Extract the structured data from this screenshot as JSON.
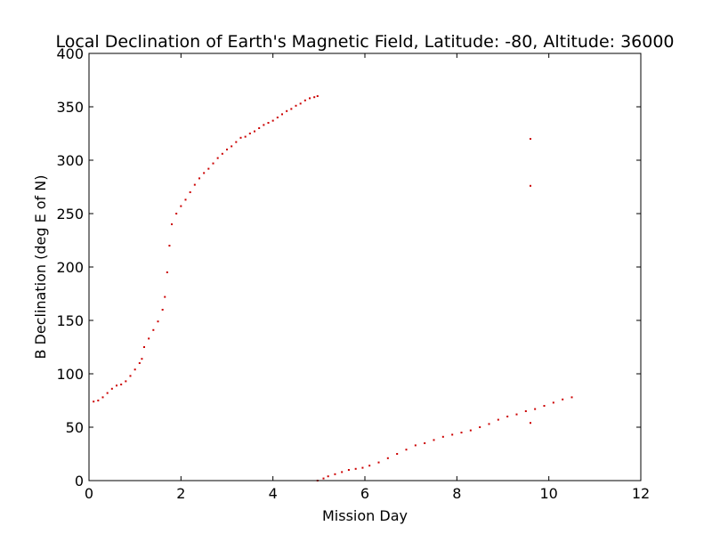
{
  "chart_data": {
    "type": "scatter",
    "title": "Local Declination of Earth's Magnetic Field, Latitude: -80, Altitude: 36000",
    "xlabel": "Mission Day",
    "ylabel": "B Declination (deg E of N)",
    "xlim": [
      0,
      12
    ],
    "ylim": [
      0,
      400
    ],
    "xticks": [
      "0",
      "2",
      "4",
      "6",
      "8",
      "10",
      "12"
    ],
    "yticks": [
      "0",
      "50",
      "100",
      "150",
      "200",
      "250",
      "300",
      "350",
      "400"
    ],
    "grid": false,
    "legend": "none",
    "series": [
      {
        "color": "#cc0000",
        "points": [
          [
            0.1,
            74
          ],
          [
            0.2,
            75
          ],
          [
            0.3,
            78
          ],
          [
            0.4,
            82
          ],
          [
            0.5,
            86
          ],
          [
            0.6,
            89
          ],
          [
            0.7,
            90
          ],
          [
            0.8,
            93
          ],
          [
            0.9,
            98
          ],
          [
            1.0,
            104
          ],
          [
            1.1,
            110
          ],
          [
            1.15,
            114
          ],
          [
            1.2,
            125
          ],
          [
            1.3,
            133
          ],
          [
            1.4,
            141
          ],
          [
            1.5,
            149
          ],
          [
            1.6,
            160
          ],
          [
            1.65,
            172
          ],
          [
            1.7,
            195
          ],
          [
            1.75,
            220
          ],
          [
            1.8,
            240
          ],
          [
            1.9,
            250
          ],
          [
            2.0,
            257
          ],
          [
            2.1,
            263
          ],
          [
            2.2,
            270
          ],
          [
            2.3,
            277
          ],
          [
            2.4,
            283
          ],
          [
            2.5,
            288
          ],
          [
            2.6,
            292
          ],
          [
            2.7,
            297
          ],
          [
            2.8,
            302
          ],
          [
            2.9,
            306
          ],
          [
            3.0,
            310
          ],
          [
            3.1,
            313
          ],
          [
            3.2,
            317
          ],
          [
            3.3,
            321
          ],
          [
            3.4,
            322
          ],
          [
            3.5,
            325
          ],
          [
            3.6,
            327
          ],
          [
            3.7,
            330
          ],
          [
            3.8,
            333
          ],
          [
            3.9,
            335
          ],
          [
            4.0,
            337
          ],
          [
            4.1,
            340
          ],
          [
            4.2,
            343
          ],
          [
            4.3,
            346
          ],
          [
            4.4,
            348
          ],
          [
            4.5,
            351
          ],
          [
            4.6,
            353
          ],
          [
            4.7,
            356
          ],
          [
            4.8,
            358
          ],
          [
            4.9,
            359
          ],
          [
            4.97,
            360
          ],
          [
            4.97,
            0
          ],
          [
            5.1,
            2
          ],
          [
            5.2,
            4
          ],
          [
            5.35,
            6
          ],
          [
            5.5,
            8
          ],
          [
            5.65,
            10
          ],
          [
            5.8,
            11
          ],
          [
            5.95,
            12
          ],
          [
            6.1,
            14
          ],
          [
            6.3,
            17
          ],
          [
            6.5,
            21
          ],
          [
            6.7,
            25
          ],
          [
            6.9,
            29
          ],
          [
            7.1,
            33
          ],
          [
            7.3,
            35
          ],
          [
            7.5,
            38
          ],
          [
            7.7,
            41
          ],
          [
            7.9,
            43
          ],
          [
            8.1,
            45
          ],
          [
            8.3,
            47
          ],
          [
            8.5,
            50
          ],
          [
            8.7,
            53
          ],
          [
            8.9,
            57
          ],
          [
            9.1,
            60
          ],
          [
            9.3,
            62
          ],
          [
            9.5,
            65
          ],
          [
            9.7,
            67
          ],
          [
            9.9,
            70
          ],
          [
            10.1,
            73
          ],
          [
            10.3,
            76
          ],
          [
            10.5,
            78
          ],
          [
            9.6,
            320
          ],
          [
            9.6,
            276
          ],
          [
            9.6,
            54
          ]
        ]
      }
    ]
  }
}
